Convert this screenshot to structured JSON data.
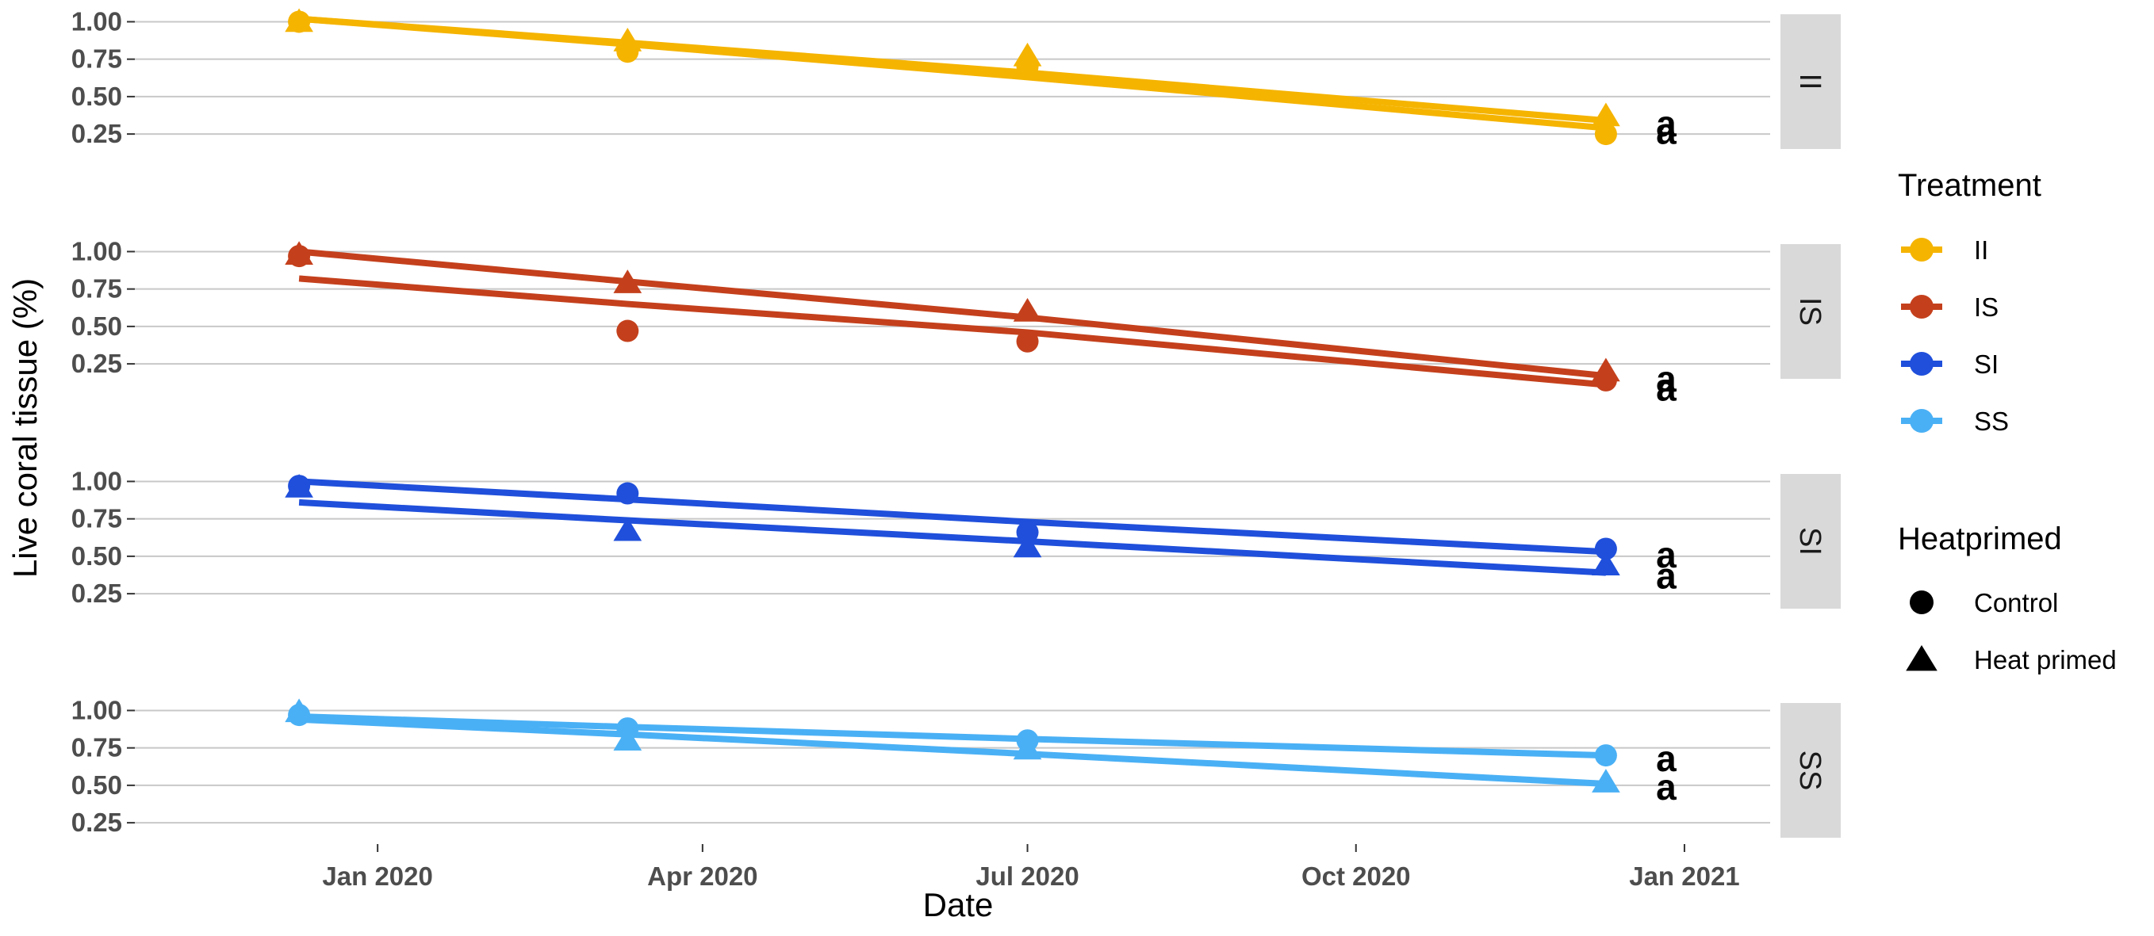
{
  "chart_data": {
    "type": "line",
    "xlabel": "Date",
    "ylabel": "Live coral tissue (%)",
    "x_ticks": [
      "Jan 2020",
      "Apr 2020",
      "Jul 2020",
      "Oct 2020",
      "Jan 2021"
    ],
    "y_ticks": [
      "0.25",
      "0.50",
      "0.75",
      "1.00"
    ],
    "xlim": [
      "2019-10-25",
      "2021-01-25"
    ],
    "ylim": [
      0.15,
      1.05
    ],
    "grid": true,
    "dates": [
      "2019-12-10",
      "2020-03-11",
      "2020-07-01",
      "2020-12-10"
    ],
    "treatment_colors": {
      "II": "#F5B400",
      "IS": "#C4401C",
      "SI": "#1F4FDB",
      "SS": "#4AB0F5"
    },
    "panels": [
      {
        "strip": "II",
        "color": "#F5B400",
        "letters": [
          "a",
          "a"
        ],
        "series": [
          {
            "heatprimed": "Control",
            "points": [
              1.0,
              0.8,
              0.7,
              0.25
            ],
            "fit": [
              1.02,
              0.85,
              0.63,
              0.29
            ]
          },
          {
            "heatprimed": "Heat primed",
            "points": [
              1.0,
              0.87,
              0.77,
              0.37
            ],
            "fit": [
              1.02,
              0.86,
              0.66,
              0.34
            ]
          }
        ]
      },
      {
        "strip": "IS",
        "color": "#C4401C",
        "letters": [
          "a",
          "a"
        ],
        "series": [
          {
            "heatprimed": "Control",
            "points": [
              0.97,
              0.47,
              0.4,
              0.14
            ],
            "fit": [
              0.82,
              0.65,
              0.46,
              0.11
            ]
          },
          {
            "heatprimed": "Heat primed",
            "points": [
              0.98,
              0.79,
              0.6,
              0.2
            ],
            "fit": [
              1.0,
              0.8,
              0.56,
              0.17
            ]
          }
        ]
      },
      {
        "strip": "SI",
        "color": "#1F4FDB",
        "letters": [
          "a",
          "a"
        ],
        "series": [
          {
            "heatprimed": "Control",
            "points": [
              0.97,
              0.92,
              0.66,
              0.55
            ],
            "fit": [
              1.0,
              0.88,
              0.73,
              0.53
            ]
          },
          {
            "heatprimed": "Heat primed",
            "points": [
              0.96,
              0.67,
              0.56,
              0.44
            ],
            "fit": [
              0.86,
              0.74,
              0.6,
              0.39
            ]
          }
        ]
      },
      {
        "strip": "SS",
        "color": "#4AB0F5",
        "letters": [
          "a",
          "a"
        ],
        "series": [
          {
            "heatprimed": "Control",
            "points": [
              0.97,
              0.88,
              0.8,
              0.7
            ],
            "fit": [
              0.96,
              0.89,
              0.81,
              0.7
            ]
          },
          {
            "heatprimed": "Heat primed",
            "points": [
              0.99,
              0.8,
              0.74,
              0.52
            ],
            "fit": [
              0.94,
              0.84,
              0.71,
              0.51
            ]
          }
        ]
      }
    ],
    "legend": {
      "placement": "right",
      "treatment_title": "Treatment",
      "treatment_items": [
        "II",
        "IS",
        "SI",
        "SS"
      ],
      "heatprimed_title": "Heatprimed",
      "heatprimed_items": [
        "Control",
        "Heat primed"
      ]
    }
  }
}
